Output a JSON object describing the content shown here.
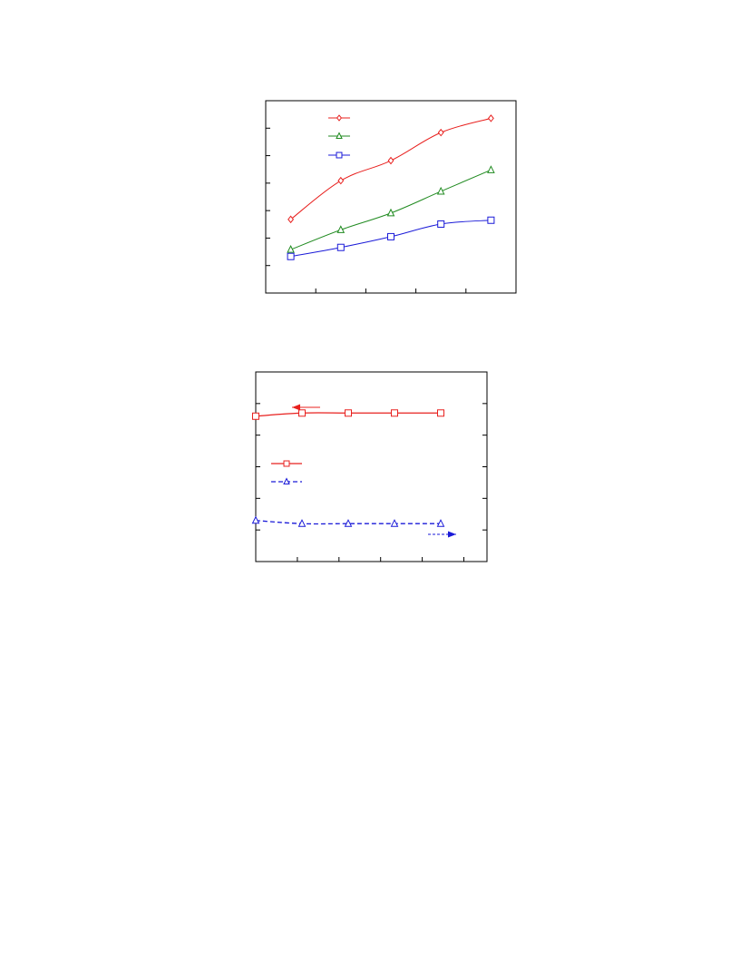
{
  "colors": {
    "red": "#e8201e",
    "green": "#1f8a1f",
    "blue": "#1a1ad8",
    "frame": "#000000"
  },
  "chart_data": [
    {
      "type": "line",
      "title": "",
      "xlabel": "",
      "ylabel": "",
      "x": [
        1,
        2,
        3,
        4,
        5
      ],
      "xlim": [
        0.5,
        5.5
      ],
      "ylim": [
        0,
        7
      ],
      "grid": false,
      "legend_position": "top-left",
      "series": [
        {
          "color_key": "red",
          "marker": "diamond",
          "line_style": "solid",
          "values": [
            2.68,
            4.09,
            4.82,
            5.84,
            6.36
          ]
        },
        {
          "color_key": "green",
          "marker": "triangle",
          "line_style": "solid",
          "values": [
            1.58,
            2.3,
            2.91,
            3.7,
            4.48
          ]
        },
        {
          "color_key": "blue",
          "marker": "square",
          "line_style": "solid",
          "values": [
            1.33,
            1.66,
            2.05,
            2.51,
            2.65
          ]
        }
      ]
    },
    {
      "type": "line",
      "title": "",
      "xlabel": "",
      "ylabel": "",
      "x": [
        1,
        2,
        3,
        4,
        5
      ],
      "xlim": [
        1,
        6
      ],
      "ylim": [
        0,
        6
      ],
      "grid": false,
      "legend_position": "middle-left",
      "series": [
        {
          "color_key": "red",
          "marker": "square",
          "line_style": "solid",
          "axis": "left",
          "values": [
            4.6,
            4.7,
            4.7,
            4.7,
            4.7
          ]
        },
        {
          "color_key": "blue",
          "marker": "triangle",
          "line_style": "dashed",
          "axis": "right",
          "values": [
            1.3,
            1.2,
            1.2,
            1.2,
            1.2
          ]
        }
      ]
    }
  ]
}
